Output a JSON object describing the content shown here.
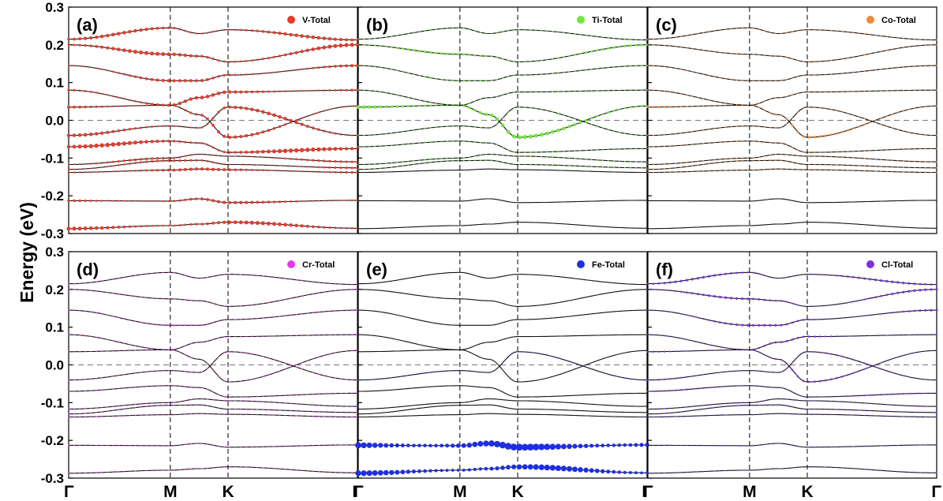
{
  "chart_data": {
    "type": "line",
    "ylabel": "Energy (eV)",
    "ylim": [
      -0.3,
      0.3
    ],
    "yticks": [
      "0.3",
      "0.2",
      "0.1",
      "0.0",
      "-0.1",
      "-0.2",
      "-0.3"
    ],
    "xticks": [
      "Γ",
      "M",
      "K",
      "Γ"
    ],
    "fermi_level": 0.0,
    "bands": [
      {
        "values": [
          -0.287,
          -0.279,
          -0.275,
          -0.27,
          -0.286
        ]
      },
      {
        "values": [
          -0.213,
          -0.214,
          -0.208,
          -0.218,
          -0.212
        ]
      },
      {
        "values": [
          -0.138,
          -0.132,
          -0.129,
          -0.131,
          -0.138
        ]
      },
      {
        "values": [
          -0.13,
          -0.107,
          -0.106,
          -0.117,
          -0.126
        ]
      },
      {
        "values": [
          -0.117,
          -0.1,
          -0.09,
          -0.095,
          -0.11
        ]
      },
      {
        "values": [
          -0.07,
          -0.055,
          -0.06,
          -0.085,
          -0.075
        ]
      },
      {
        "values": [
          -0.04,
          -0.015,
          -0.02,
          0.035,
          -0.04
        ]
      },
      {
        "values": [
          0.035,
          0.04,
          0.015,
          -0.045,
          0.038
        ]
      },
      {
        "values": [
          0.08,
          0.04,
          0.06,
          0.075,
          0.08
        ]
      },
      {
        "values": [
          0.145,
          0.105,
          0.105,
          0.12,
          0.145
        ]
      },
      {
        "values": [
          0.2,
          0.175,
          0.17,
          0.155,
          0.2
        ]
      },
      {
        "values": [
          0.215,
          0.245,
          0.23,
          0.24,
          0.213
        ]
      }
    ],
    "panels": [
      {
        "label": "(a)",
        "legend": "V-Total",
        "color": "#e43c2c",
        "weights": [
          0.55,
          0.45,
          0.45,
          0.35,
          0.35,
          0.6,
          0.5,
          0.45,
          0.5,
          0.45,
          0.55,
          0.5
        ]
      },
      {
        "label": "(b)",
        "legend": "Ti-Total",
        "color": "#6ee83a",
        "weights": [
          0.0,
          0.0,
          0.0,
          0.05,
          0.05,
          0.1,
          0.1,
          0.55,
          0.1,
          0.25,
          0.35,
          0.08
        ]
      },
      {
        "label": "(c)",
        "legend": "Co-Total",
        "color": "#f08a3a",
        "weights": [
          0.0,
          0.0,
          0.05,
          0.05,
          0.05,
          0.05,
          0.08,
          0.35,
          0.08,
          0.05,
          0.05,
          0.05
        ]
      },
      {
        "label": "(d)",
        "legend": "Cr-Total",
        "color": "#e83ae8",
        "weights": [
          0.08,
          0.1,
          0.1,
          0.12,
          0.08,
          0.08,
          0.08,
          0.1,
          0.1,
          0.25,
          0.1,
          0.08
        ]
      },
      {
        "label": "(e)",
        "legend": "Fe-Total",
        "color": "#1f2ee0",
        "weights": [
          0.8,
          0.95,
          0.02,
          0.02,
          0.02,
          0.02,
          0.05,
          0.02,
          0.02,
          0.02,
          0.02,
          0.02
        ]
      },
      {
        "label": "(f)",
        "legend": "Cl-Total",
        "color": "#7a2ee8",
        "weights": [
          0.1,
          0.1,
          0.15,
          0.2,
          0.2,
          0.25,
          0.25,
          0.3,
          0.3,
          0.35,
          0.35,
          0.35
        ]
      }
    ]
  }
}
